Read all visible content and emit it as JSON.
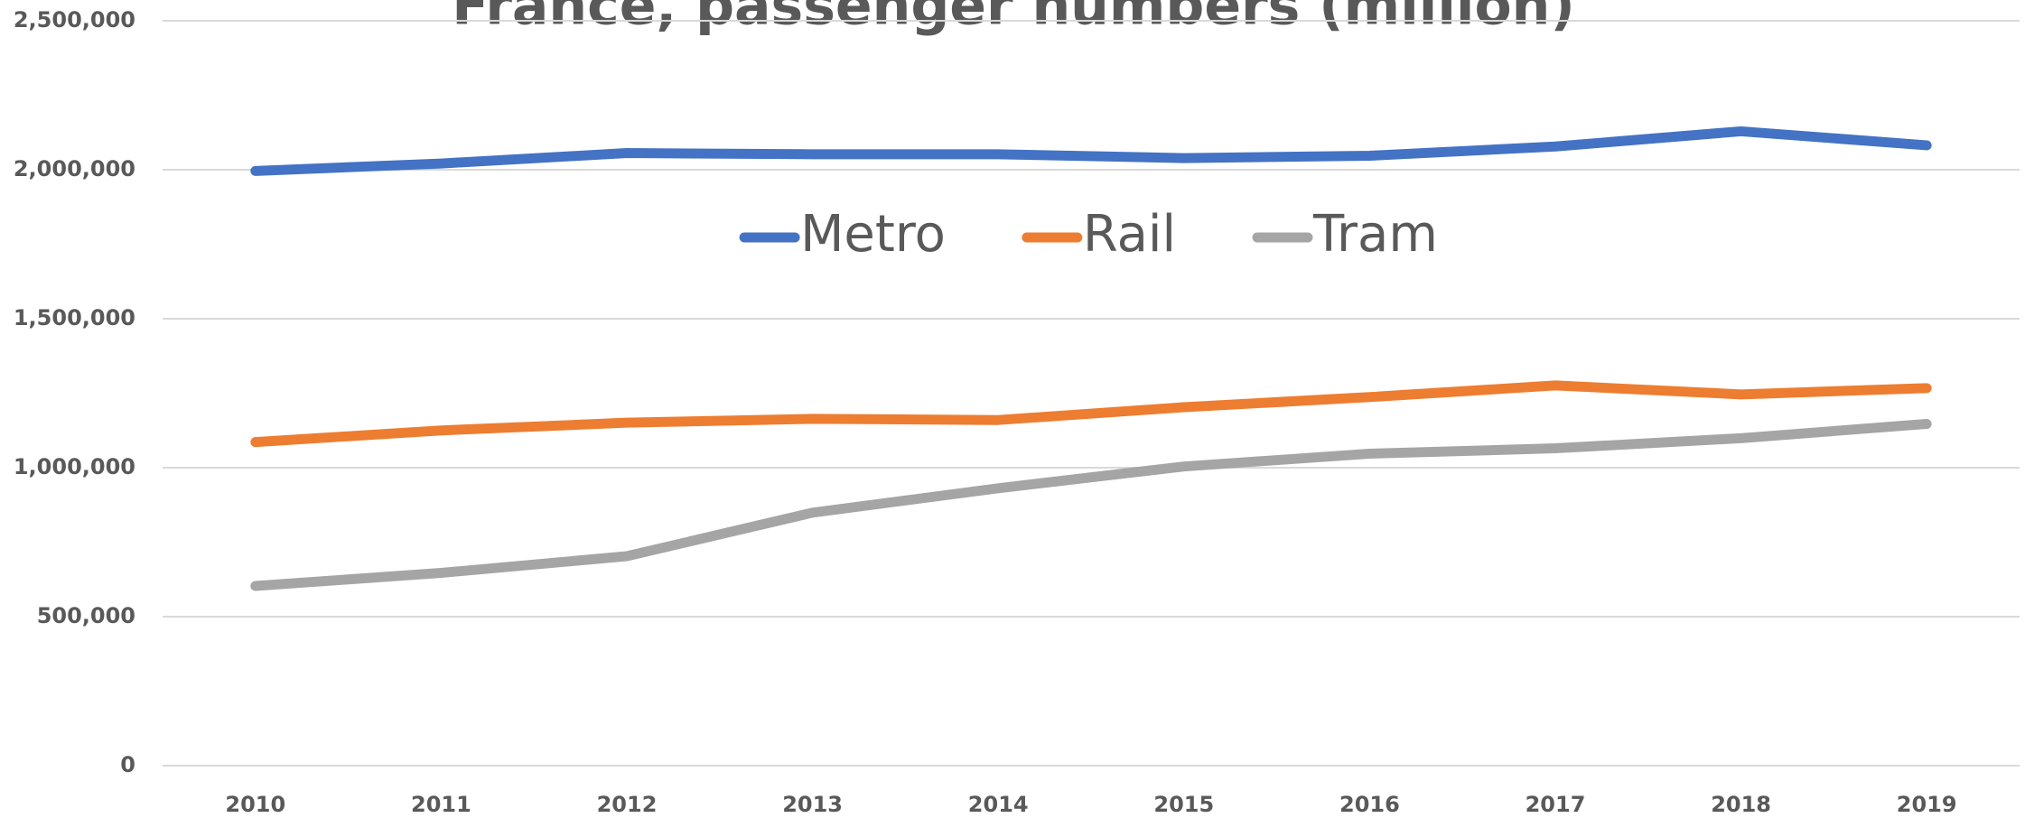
{
  "chart_data": {
    "type": "line",
    "title": "France, passenger numbers (million)",
    "categories": [
      "2010",
      "2011",
      "2012",
      "2013",
      "2014",
      "2015",
      "2016",
      "2017",
      "2018",
      "2019"
    ],
    "series": [
      {
        "name": "Metro",
        "color": "#4472c4",
        "values": [
          1996000,
          2021000,
          2056000,
          2052000,
          2052000,
          2039000,
          2047000,
          2078000,
          2129000,
          2082000
        ]
      },
      {
        "name": "Rail",
        "color": "#ed7d31",
        "values": [
          1086000,
          1125000,
          1151000,
          1164000,
          1160000,
          1203000,
          1237000,
          1276000,
          1246000,
          1267000
        ]
      },
      {
        "name": "Tram",
        "color": "#a5a5a5",
        "values": [
          603000,
          647000,
          703000,
          849000,
          931000,
          1004000,
          1047000,
          1065000,
          1099000,
          1147000
        ]
      }
    ],
    "ylim": [
      0,
      2500000
    ],
    "yticks": [
      0,
      {
        "value": 500000,
        "label": "500,000"
      },
      {
        "value": 1000000,
        "label": "1,000,000"
      },
      {
        "value": 1500000,
        "label": "1,500,000"
      },
      {
        "value": 2000000,
        "label": "2,000,000"
      },
      {
        "value": 2500000,
        "label": "2,500,000"
      }
    ],
    "grid": true,
    "legend": "top"
  }
}
